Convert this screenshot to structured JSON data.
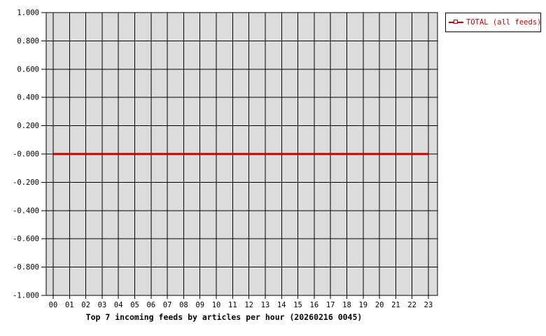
{
  "chart_data": {
    "type": "line",
    "title": "Top 7 incoming feeds by articles per hour (20260216 0045)",
    "xlabel": "",
    "ylabel": "",
    "x_labels": [
      "00",
      "01",
      "02",
      "03",
      "04",
      "05",
      "06",
      "07",
      "08",
      "09",
      "10",
      "11",
      "12",
      "13",
      "14",
      "15",
      "16",
      "17",
      "18",
      "19",
      "20",
      "21",
      "22",
      "23"
    ],
    "y_tick_labels": [
      "1.000",
      "0.800",
      "0.600",
      "0.400",
      "0.200",
      "-0.000",
      "-0.200",
      "-0.400",
      "-0.600",
      "-0.800",
      "-1.000"
    ],
    "ylim": [
      -1.0,
      1.0
    ],
    "grid": true,
    "plot_bg": "#dcdcdc",
    "grid_color": "#000000",
    "legend_position": "top-right",
    "series": [
      {
        "name": "TOTAL (all feeds)",
        "color": "#cc0000",
        "marker": "square",
        "values": [
          0,
          0,
          0,
          0,
          0,
          0,
          0,
          0,
          0,
          0,
          0,
          0,
          0,
          0,
          0,
          0,
          0,
          0,
          0,
          0,
          0,
          0,
          0,
          0
        ]
      }
    ]
  }
}
